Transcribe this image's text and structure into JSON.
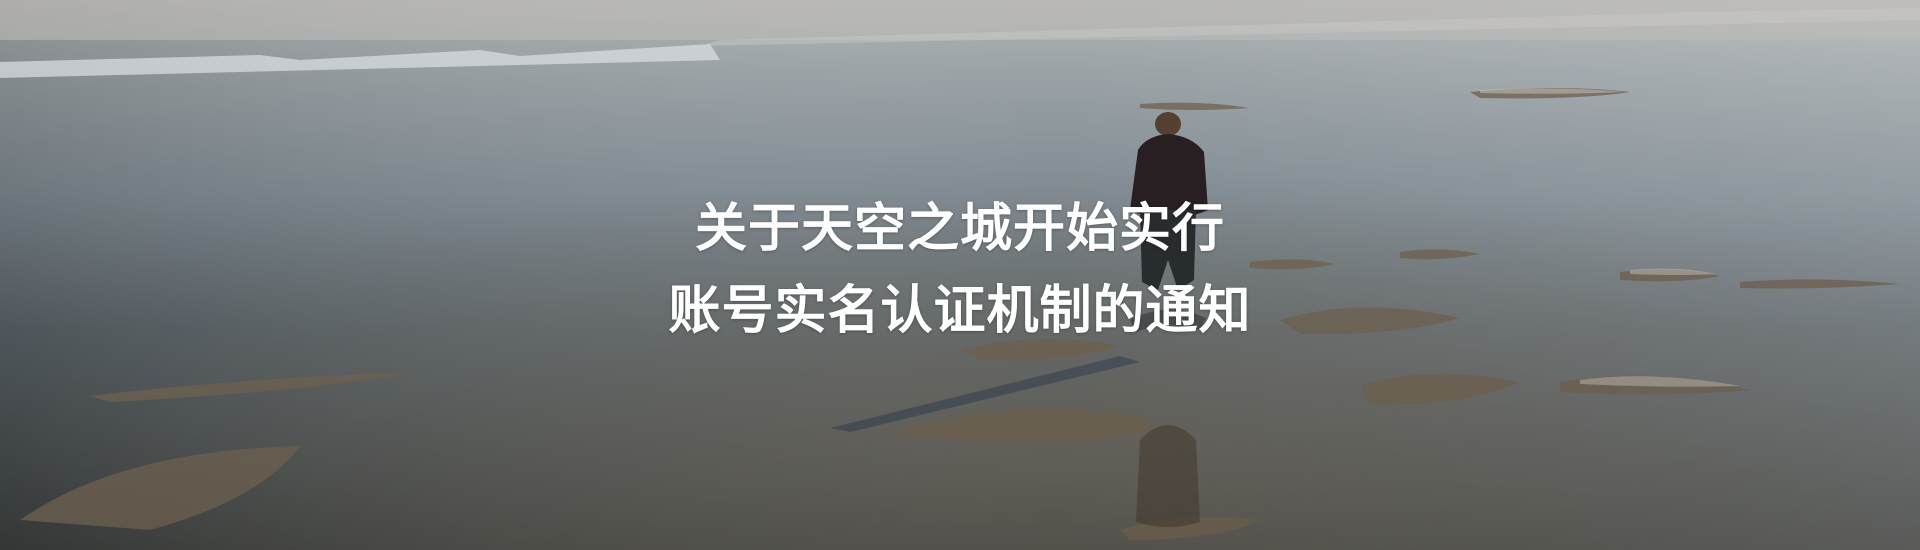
{
  "banner": {
    "title_line_1": "关于天空之城开始实行",
    "title_line_2": "账号实名认证机制的通知",
    "image": "lake-shore-person-wading"
  }
}
